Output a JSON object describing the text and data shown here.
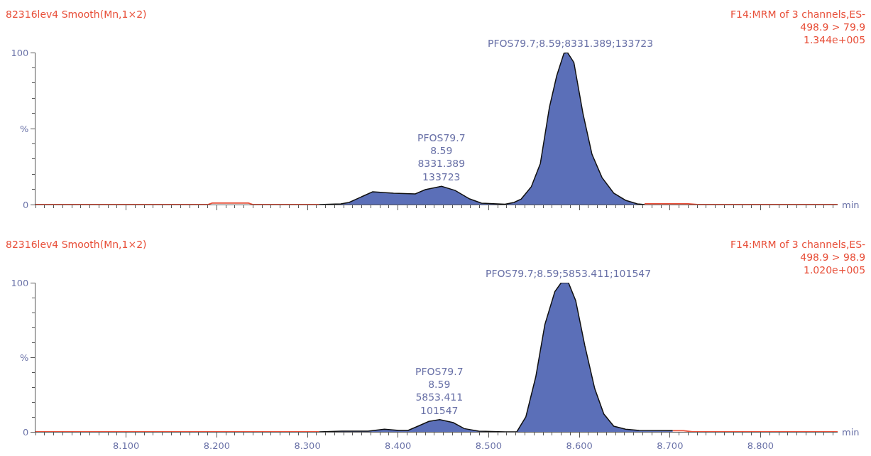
{
  "chart_data": [
    {
      "type": "area",
      "title": "82316lev4 Smooth(Mn,1×2)",
      "subtitle": "F14:MRM of 3 channels,ES-\n498.9 > 79.9\n1.344e+005",
      "xlabel": "min",
      "tick_labels": "y",
      "xlim": [
        8.0,
        8.885
      ],
      "xticks": [
        8.1,
        8.2,
        8.3,
        8.4,
        8.5,
        8.6,
        8.7,
        8.8
      ],
      "ylim": [
        0,
        100
      ],
      "yticks": [
        0,
        {
          "value": 50,
          "label": "%"
        },
        100
      ],
      "series": [
        {
          "type": "line",
          "color": "#e8503a",
          "x": [
            8.0,
            8.19,
            8.195,
            8.235,
            8.24,
            8.313,
            8.5,
            8.672,
            8.72,
            8.73,
            8.885
          ],
          "values": [
            0,
            0,
            1,
            1,
            0,
            0,
            null,
            0.5,
            0.5,
            0,
            0
          ]
        },
        {
          "color": "#5b6fb8",
          "x": [
            8.313,
            8.337,
            8.346,
            8.372,
            8.395,
            8.419,
            8.43,
            8.448,
            8.463,
            8.479,
            8.492,
            8.518,
            8.528,
            8.536,
            8.547,
            8.557,
            8.567,
            8.575,
            8.583,
            8.587,
            8.594,
            8.604,
            8.614,
            8.625,
            8.638,
            8.651,
            8.664,
            8.672
          ],
          "values": [
            0,
            0.5,
            1.4,
            8.4,
            7.5,
            7,
            9.8,
            12,
            9.3,
            3.7,
            0.9,
            0.2,
            1.4,
            3.7,
            11.7,
            27,
            64,
            84.6,
            99.5,
            100,
            93.5,
            60,
            33,
            17.8,
            7.5,
            2.8,
            0.5,
            0
          ]
        }
      ],
      "annotations": [
        {
          "text": "PFOS79.7;8.59;8331.389;133723",
          "x": 8.59,
          "y": 100
        },
        {
          "text": "PFOS79.7\n8.59\n8331.389\n133723",
          "x": 8.448,
          "y": 12
        }
      ]
    },
    {
      "type": "area",
      "title": "82316lev4 Smooth(Mn,1×2)",
      "subtitle": "F14:MRM of 3 channels,ES-\n498.9 > 98.9\n1.020e+005",
      "xlabel": "min",
      "xlim": [
        8.0,
        8.885
      ],
      "xticks": [
        {
          "value": 8.1,
          "label": "8.100"
        },
        {
          "value": 8.2,
          "label": "8.200"
        },
        {
          "value": 8.3,
          "label": "8.300"
        },
        {
          "value": 8.4,
          "label": "8.400"
        },
        {
          "value": 8.5,
          "label": "8.500"
        },
        {
          "value": 8.6,
          "label": "8.600"
        },
        {
          "value": 8.7,
          "label": "8.700"
        },
        {
          "value": 8.8,
          "label": "8.800"
        }
      ],
      "ylim": [
        0,
        100
      ],
      "yticks": [
        0,
        {
          "value": 50,
          "label": "%"
        },
        100
      ],
      "series": [
        {
          "type": "line",
          "color": "#e8503a",
          "x": [
            8.0,
            8.313,
            8.5,
            8.703,
            8.715,
            8.725,
            8.885
          ],
          "values": [
            0,
            0,
            null,
            0.8,
            0.8,
            0,
            0
          ]
        },
        {
          "color": "#5b6fb8",
          "x": [
            8.313,
            8.338,
            8.367,
            8.385,
            8.401,
            8.411,
            8.422,
            8.434,
            8.446,
            8.461,
            8.473,
            8.489,
            8.518,
            8.531,
            8.541,
            8.552,
            8.562,
            8.573,
            8.58,
            8.588,
            8.596,
            8.606,
            8.617,
            8.627,
            8.638,
            8.651,
            8.666,
            8.703
          ],
          "values": [
            0,
            0.5,
            0.5,
            1.8,
            1,
            1,
            3.8,
            7,
            8.2,
            6.2,
            2.2,
            0.5,
            0,
            0,
            10,
            37,
            72,
            94,
            100,
            100,
            88,
            58,
            29,
            12,
            3.8,
            1.8,
            1,
            0.8
          ]
        }
      ],
      "annotations": [
        {
          "text": "PFOS79.7;8.59;5853.411;101547",
          "x": 8.588,
          "y": 100
        },
        {
          "text": "PFOS79.7\n8.59\n5853.411\n101547",
          "x": 8.446,
          "y": 8.2
        }
      ]
    }
  ]
}
